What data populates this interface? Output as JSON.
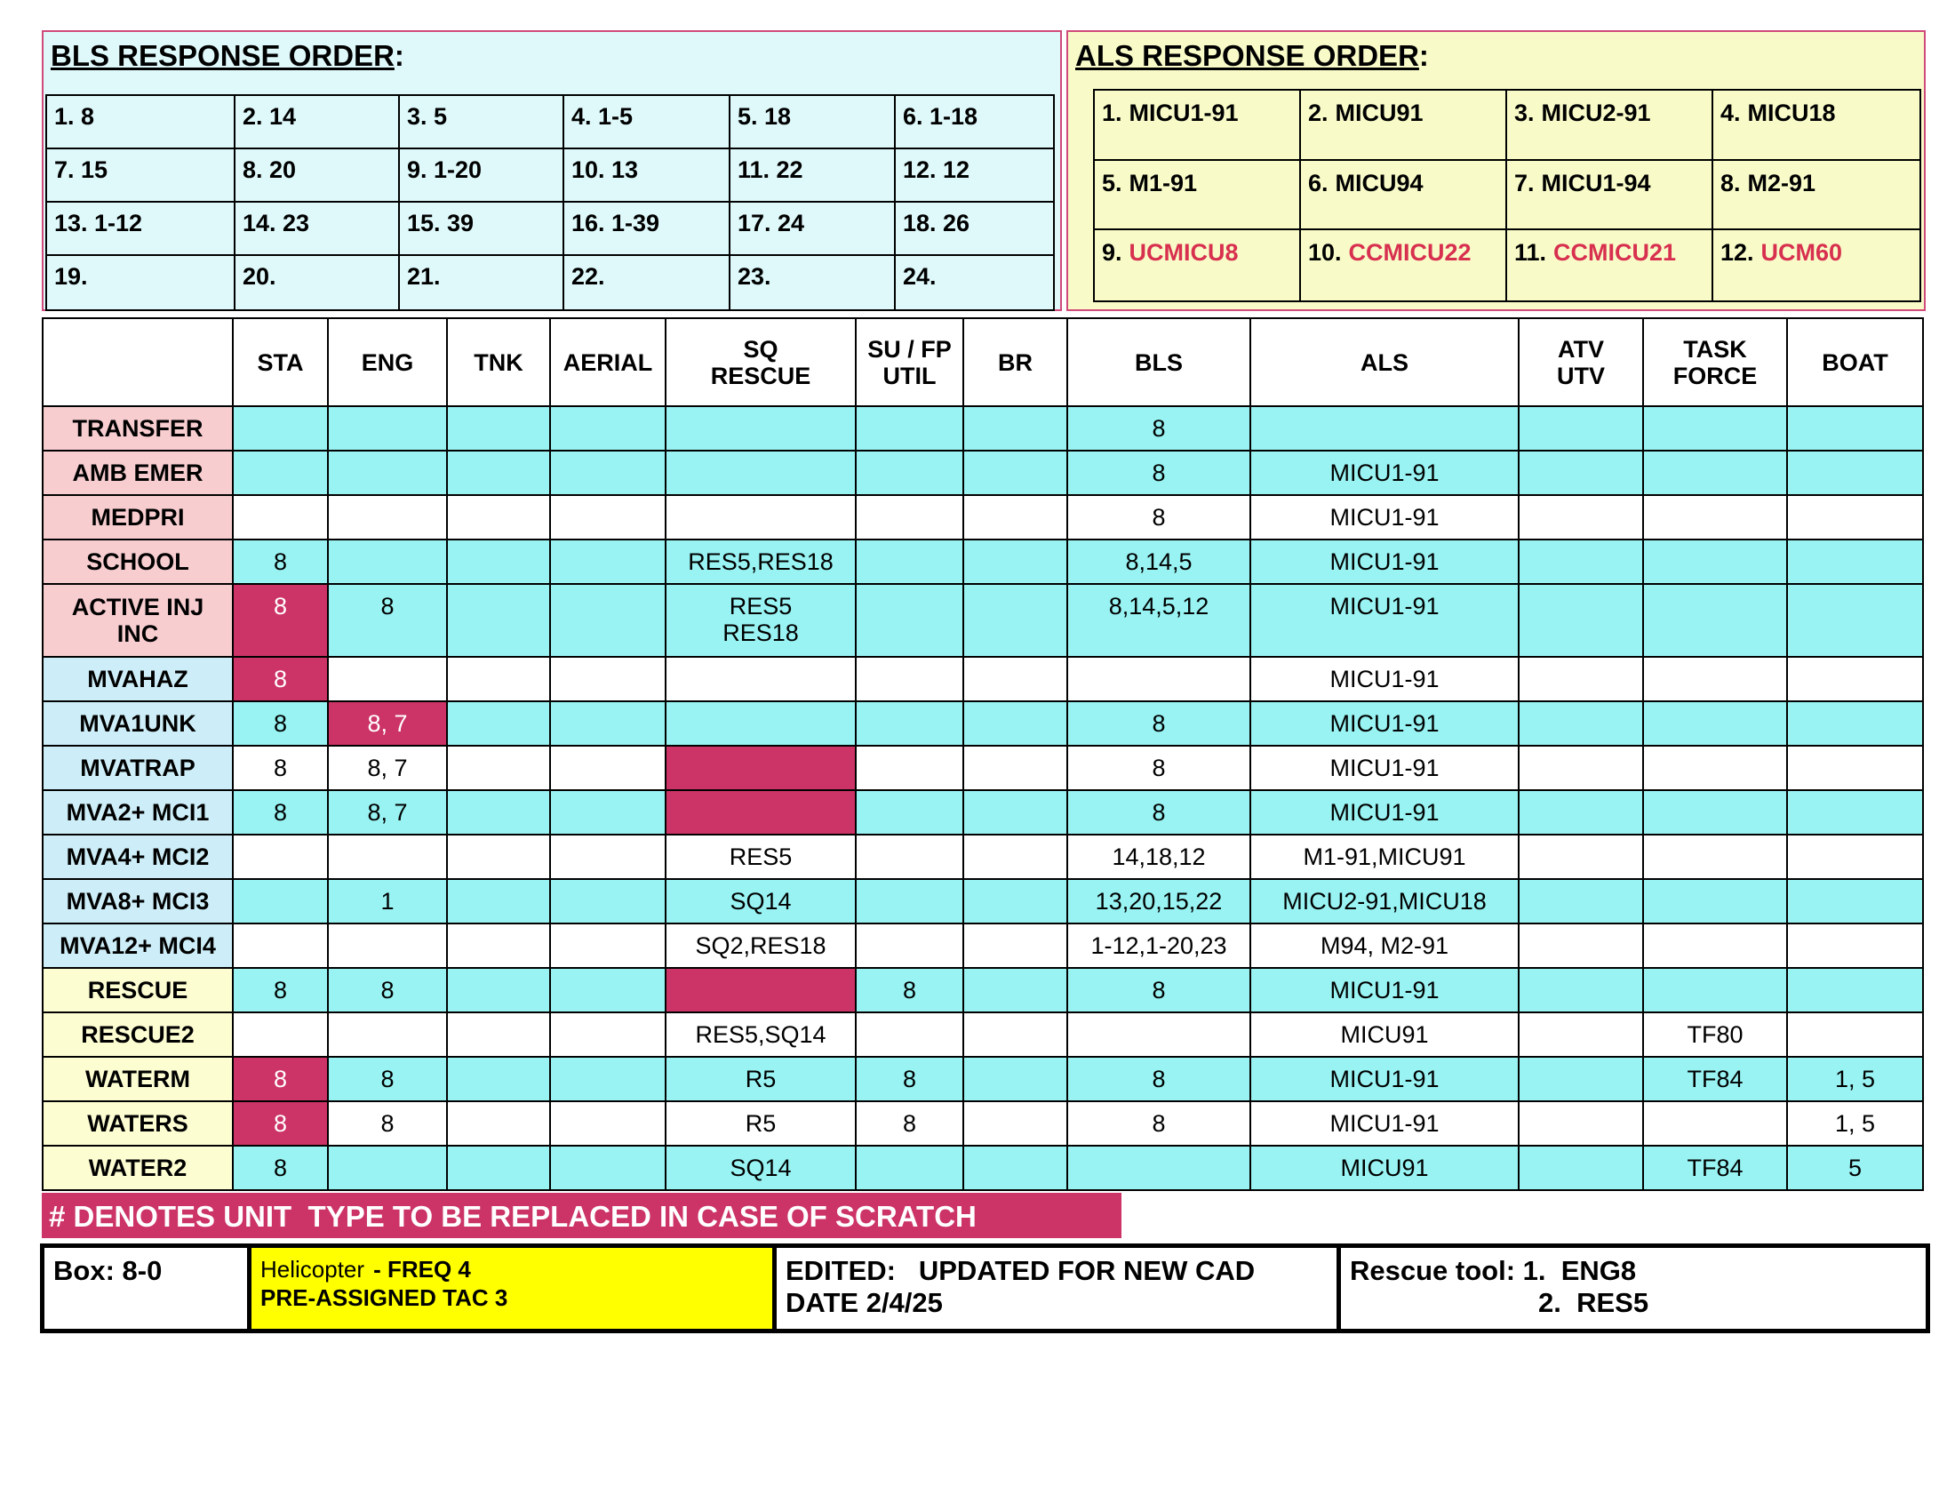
{
  "bls": {
    "title": "BLS RESPONSE ORDER",
    "colon": ":",
    "cells": [
      "1. 8",
      "2. 14",
      "3. 5",
      "4. 1-5",
      "5. 18",
      "6. 1-18",
      "7. 15",
      "8. 20",
      "9. 1-20",
      "10. 13",
      "11. 22",
      "12. 12",
      "13. 1-12",
      "14. 23",
      "15. 39",
      "16. 1-39",
      "17. 24",
      "18. 26",
      "19.",
      "20.",
      "21.",
      "22.",
      "23.",
      "24."
    ]
  },
  "als": {
    "title": "ALS RESPONSE ORDER",
    "colon": ":",
    "cells": [
      {
        "num": "1.",
        "unit": "MICU1-91"
      },
      {
        "num": "2.",
        "unit": "MICU91"
      },
      {
        "num": "3.",
        "unit": "MICU2-91"
      },
      {
        "num": "4.",
        "unit": "MICU18"
      },
      {
        "num": "5.",
        "unit": "M1-91"
      },
      {
        "num": "6.",
        "unit": "MICU94"
      },
      {
        "num": "7.",
        "unit": "MICU1-94"
      },
      {
        "num": "8.",
        "unit": "M2-91"
      },
      {
        "num": "9.",
        "unit": "UCMICU8",
        "color": "#d8304f"
      },
      {
        "num": "10.",
        "unit": "CCMICU22",
        "color": "#d8304f"
      },
      {
        "num": "11.",
        "unit": "CCMICU21",
        "color": "#d8304f"
      },
      {
        "num": "12.",
        "unit": "UCM60",
        "color": "#d8304f"
      }
    ]
  },
  "table": {
    "highlight_color": "#cc3366",
    "headers": [
      "STA",
      "ENG",
      "TNK",
      "AERIAL",
      [
        "SQ",
        "RESCUE"
      ],
      [
        "SU / FP",
        "UTIL"
      ],
      "BR",
      "BLS",
      "ALS",
      [
        "ATV",
        "UTV"
      ],
      [
        "TASK",
        "FORCE"
      ],
      "BOAT"
    ],
    "rows": [
      {
        "label": "TRANSFER",
        "label_fill": "#f7cdd0",
        "fill": "#99f3f3",
        "cells": [
          null,
          null,
          null,
          null,
          null,
          null,
          null,
          "8",
          null,
          null,
          null,
          null
        ]
      },
      {
        "label": "AMB EMER",
        "label_fill": "#f7cdd0",
        "fill": "#99f3f3",
        "cells": [
          null,
          null,
          null,
          null,
          null,
          null,
          null,
          "8",
          "MICU1-91",
          null,
          null,
          null
        ]
      },
      {
        "label": "MEDPRI",
        "label_fill": "#f7cdd0",
        "fill": "#ffffff",
        "cells": [
          null,
          null,
          null,
          null,
          null,
          null,
          null,
          "8",
          "MICU1-91",
          null,
          null,
          null
        ]
      },
      {
        "label": "SCHOOL",
        "label_fill": "#f7cdd0",
        "fill": "#99f3f3",
        "cells": [
          "8",
          null,
          null,
          null,
          "RES5,RES18",
          null,
          null,
          "8,14,5",
          "MICU1-91",
          null,
          null,
          null
        ]
      },
      {
        "label": [
          "ACTIVE INJ",
          "INC"
        ],
        "label_fill": "#f7cdd0",
        "fill": "#99f3f3",
        "cells": [
          "8",
          "8",
          null,
          null,
          [
            "RES5",
            "RES18"
          ],
          null,
          null,
          "8,14,5,12",
          "MICU1-91",
          null,
          null,
          null
        ],
        "highlight": [
          0
        ]
      },
      {
        "label": "MVAHAZ",
        "label_fill": "#cdeef8",
        "fill": "#ffffff",
        "cells": [
          "8",
          null,
          null,
          null,
          null,
          null,
          null,
          null,
          "MICU1-91",
          null,
          null,
          null
        ],
        "highlight": [
          0
        ]
      },
      {
        "label": "MVA1UNK",
        "label_fill": "#cdeef8",
        "fill": "#99f3f3",
        "cells": [
          "8",
          "8, 7",
          null,
          null,
          null,
          null,
          null,
          "8",
          "MICU1-91",
          null,
          null,
          null
        ],
        "highlight": [
          1
        ]
      },
      {
        "label": "MVATRAP",
        "label_fill": "#cdeef8",
        "fill": "#ffffff",
        "cells": [
          "8",
          "8, 7",
          null,
          null,
          null,
          null,
          null,
          "8",
          "MICU1-91",
          null,
          null,
          null
        ],
        "highlight": [
          4
        ]
      },
      {
        "label": "MVA2+ MCI1",
        "label_fill": "#cdeef8",
        "fill": "#99f3f3",
        "cells": [
          "8",
          "8, 7",
          null,
          null,
          null,
          null,
          null,
          "8",
          "MICU1-91",
          null,
          null,
          null
        ],
        "highlight": [
          4
        ]
      },
      {
        "label": "MVA4+ MCI2",
        "label_fill": "#cdeef8",
        "fill": "#ffffff",
        "cells": [
          null,
          null,
          null,
          null,
          "RES5",
          null,
          null,
          "14,18,12",
          "M1-91,MICU91",
          null,
          null,
          null
        ]
      },
      {
        "label": "MVA8+ MCI3",
        "label_fill": "#cdeef8",
        "fill": "#99f3f3",
        "cells": [
          null,
          "1",
          null,
          null,
          "SQ14",
          null,
          null,
          "13,20,15,22",
          "MICU2-91,MICU18",
          null,
          null,
          null
        ]
      },
      {
        "label": "MVA12+ MCI4",
        "label_fill": "#cdeef8",
        "fill": "#ffffff",
        "cells": [
          null,
          null,
          null,
          null,
          "SQ2,RES18",
          null,
          null,
          "1-12,1-20,23",
          "M94, M2-91",
          null,
          null,
          null
        ]
      },
      {
        "label": "RESCUE",
        "label_fill": "#fdfdd2",
        "fill": "#99f3f3",
        "cells": [
          "8",
          "8",
          null,
          null,
          null,
          "8",
          null,
          "8",
          "MICU1-91",
          null,
          null,
          null
        ],
        "highlight": [
          4
        ]
      },
      {
        "label": "RESCUE2",
        "label_fill": "#fdfdd2",
        "fill": "#ffffff",
        "cells": [
          null,
          null,
          null,
          null,
          "RES5,SQ14",
          null,
          null,
          null,
          "MICU91",
          null,
          "TF80",
          null
        ]
      },
      {
        "label": "WATERM",
        "label_fill": "#fdfdd2",
        "fill": "#99f3f3",
        "cells": [
          "8",
          "8",
          null,
          null,
          "R5",
          "8",
          null,
          "8",
          "MICU1-91",
          null,
          "TF84",
          "1, 5"
        ],
        "highlight": [
          0
        ]
      },
      {
        "label": "WATERS",
        "label_fill": "#fdfdd2",
        "fill": "#ffffff",
        "cells": [
          "8",
          "8",
          null,
          null,
          "R5",
          "8",
          null,
          "8",
          "MICU1-91",
          null,
          null,
          "1, 5"
        ],
        "highlight": [
          0
        ]
      },
      {
        "label": "WATER2",
        "label_fill": "#fdfdd2",
        "fill": "#99f3f3",
        "cells": [
          "8",
          null,
          null,
          null,
          "SQ14",
          null,
          null,
          null,
          "MICU91",
          null,
          "TF84",
          "5"
        ]
      }
    ]
  },
  "banner": "# DENOTES UNIT  TYPE TO BE REPLACED IN CASE OF SCRATCH",
  "footer": {
    "box": "Box: 8-0",
    "heli": {
      "small": "Helicopter",
      "freq": "- FREQ 4",
      "tac": "PRE-ASSIGNED TAC 3"
    },
    "edited": [
      "EDITED:   UPDATED FOR NEW CAD",
      "DATE 2/4/25"
    ],
    "rescue": [
      "Rescue tool: 1.  ENG8",
      "2.  RES5"
    ]
  }
}
